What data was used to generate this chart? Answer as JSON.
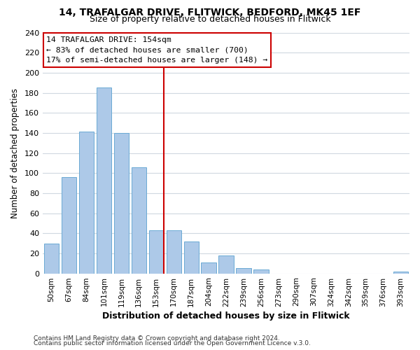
{
  "title_line1": "14, TRAFALGAR DRIVE, FLITWICK, BEDFORD, MK45 1EF",
  "title_line2": "Size of property relative to detached houses in Flitwick",
  "xlabel": "Distribution of detached houses by size in Flitwick",
  "ylabel": "Number of detached properties",
  "bar_labels": [
    "50sqm",
    "67sqm",
    "84sqm",
    "101sqm",
    "119sqm",
    "136sqm",
    "153sqm",
    "170sqm",
    "187sqm",
    "204sqm",
    "222sqm",
    "239sqm",
    "256sqm",
    "273sqm",
    "290sqm",
    "307sqm",
    "324sqm",
    "342sqm",
    "359sqm",
    "376sqm",
    "393sqm"
  ],
  "bar_values": [
    30,
    96,
    141,
    185,
    140,
    106,
    43,
    43,
    32,
    11,
    18,
    5,
    4,
    0,
    0,
    0,
    0,
    0,
    0,
    0,
    2
  ],
  "bar_color": "#adc9e8",
  "bar_edge_color": "#6aaad4",
  "reference_line_index": 6,
  "reference_line_color": "#cc0000",
  "ylim": [
    0,
    240
  ],
  "yticks": [
    0,
    20,
    40,
    60,
    80,
    100,
    120,
    140,
    160,
    180,
    200,
    220,
    240
  ],
  "annotation_box_text_line1": "14 TRAFALGAR DRIVE: 154sqm",
  "annotation_box_text_line2": "← 83% of detached houses are smaller (700)",
  "annotation_box_text_line3": "17% of semi-detached houses are larger (148) →",
  "footer_line1": "Contains HM Land Registry data © Crown copyright and database right 2024.",
  "footer_line2": "Contains public sector information licensed under the Open Government Licence v.3.0.",
  "bg_color": "#ffffff",
  "grid_color": "#d0d8e0",
  "title_fontsize": 10,
  "subtitle_fontsize": 9
}
